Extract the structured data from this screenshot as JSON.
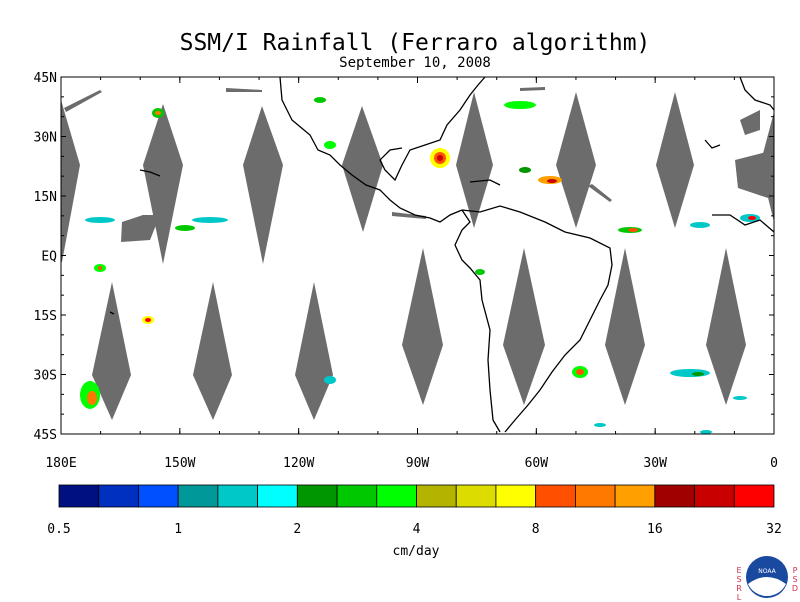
{
  "map": {
    "title": "SSM/I Rainfall (Ferraro algorithm)",
    "subtitle": "September 10, 2008",
    "lat_labels": [
      "45N",
      "30N",
      "15N",
      "EQ",
      "15S",
      "30S",
      "45S"
    ],
    "lon_labels": [
      "180E",
      "150W",
      "120W",
      "90W",
      "60W",
      "30W",
      "0"
    ],
    "lat_values": [
      45,
      30,
      15,
      0,
      -15,
      -30,
      -45
    ],
    "lon_values": [
      -180,
      -150,
      -120,
      -90,
      -60,
      -30,
      0
    ],
    "extent": {
      "lon": [
        -180,
        0
      ],
      "lat": [
        -45,
        45
      ]
    },
    "colors": {
      "swath_gap": "#6c6c6c",
      "coast": "#000000"
    }
  },
  "colorbar": {
    "unit": "cm/day",
    "tick_labels": [
      "0.5",
      "1",
      "2",
      "4",
      "8",
      "16",
      "32"
    ],
    "colors": [
      "#001080",
      "#0030c0",
      "#0050ff",
      "#009898",
      "#00c8c8",
      "#00ffff",
      "#009600",
      "#00c800",
      "#00ff00",
      "#b4b400",
      "#dcdc00",
      "#ffff00",
      "#ff5000",
      "#ff7800",
      "#ffa000",
      "#a00000",
      "#c80000",
      "#ff0000"
    ]
  },
  "logo": {
    "left_text": "ESRL",
    "right_text": "PSD",
    "badge": "NOAA"
  }
}
